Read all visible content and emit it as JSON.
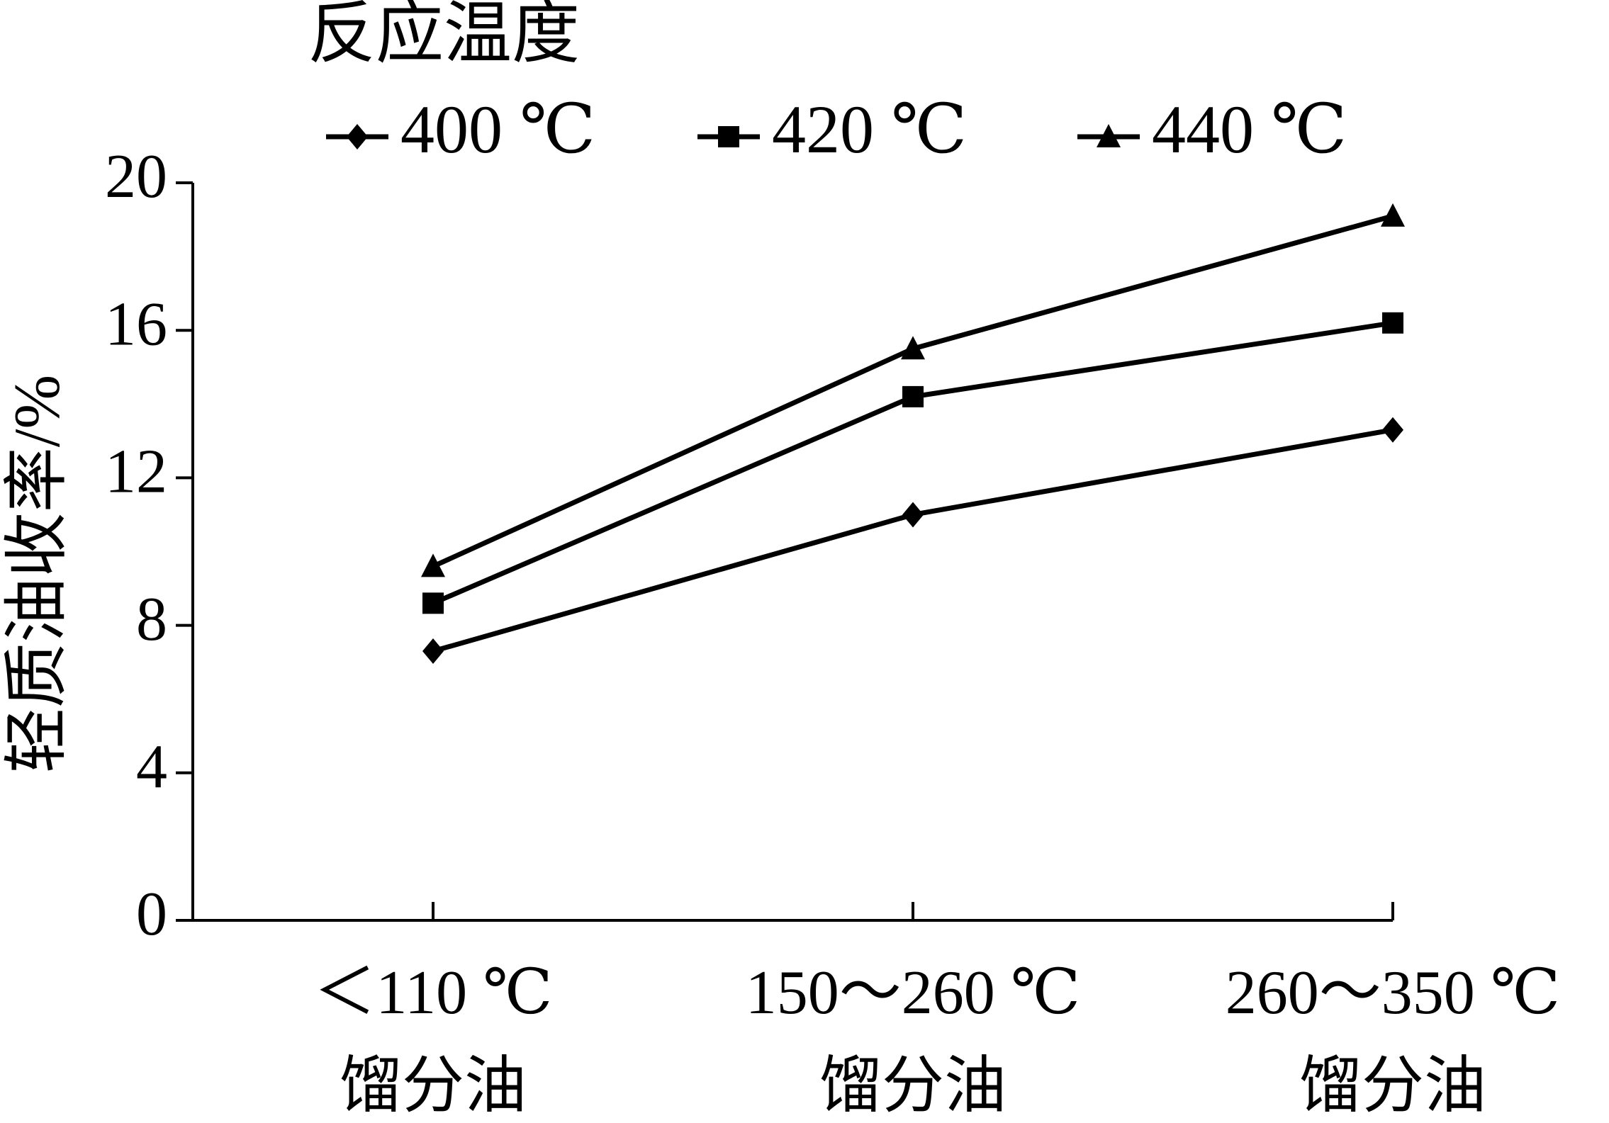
{
  "chart_data": {
    "type": "line",
    "legend_title": "反应温度",
    "y_label": "轻质油收率/%",
    "categories": [
      [
        "＜110 ℃",
        "馏分油"
      ],
      [
        "150～260 ℃",
        "馏分油"
      ],
      [
        "260～350 ℃",
        "馏分油"
      ]
    ],
    "series": [
      {
        "name": "400 ℃",
        "color": "#000000",
        "marker": "diamond",
        "values": [
          7.3,
          11.0,
          13.3
        ]
      },
      {
        "name": "420 ℃",
        "color": "#000000",
        "marker": "square",
        "values": [
          8.6,
          14.2,
          16.2
        ]
      },
      {
        "name": "440 ℃",
        "color": "#000000",
        "marker": "triangle",
        "values": [
          9.6,
          15.5,
          19.1
        ]
      }
    ],
    "ylim": [
      0,
      20
    ],
    "yticks": [
      0,
      4,
      8,
      12,
      16,
      20
    ],
    "grid": false
  }
}
